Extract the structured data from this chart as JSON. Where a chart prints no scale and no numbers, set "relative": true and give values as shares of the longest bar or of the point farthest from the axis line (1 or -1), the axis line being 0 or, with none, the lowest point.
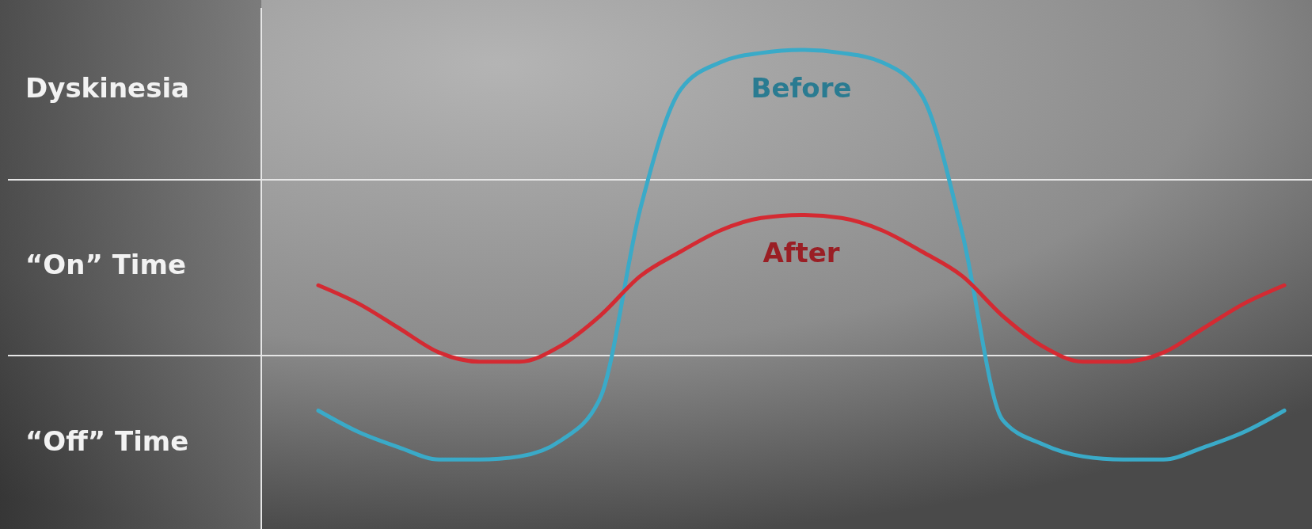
{
  "chart_data": {
    "type": "line",
    "relative": true,
    "categories": [
      null,
      null,
      null,
      null,
      null,
      null,
      null,
      null,
      null,
      null,
      null,
      null,
      null,
      null,
      null,
      null,
      null,
      null,
      null,
      null,
      null,
      null,
      null,
      null,
      null
    ],
    "annotations": [
      "Dyskinesia",
      "“On” Time",
      "“Off” Time"
    ],
    "ref_lines": [
      {
        "axis": "y",
        "value": 0.575,
        "color": "#e6e6e6"
      }
    ],
    "legend": false,
    "marker": "none",
    "line_style": "solid",
    "series": [
      {
        "name": "Before",
        "color": "#3aaac8",
        "values": [
          -0.18,
          -0.25,
          -0.3,
          -0.34,
          -0.34,
          -0.33,
          -0.28,
          -0.14,
          0.48,
          0.87,
          0.96,
          0.99,
          1,
          0.99,
          0.96,
          0.85,
          0.4,
          -0.21,
          -0.29,
          -0.33,
          -0.34,
          -0.34,
          -0.3,
          -0.25,
          -0.18
        ]
      },
      {
        "name": "After",
        "color": "#d42a32",
        "values": [
          0.23,
          0.17,
          0.09,
          0.01,
          -0.02,
          -0.02,
          0.03,
          0.13,
          0.26,
          0.34,
          0.41,
          0.45,
          0.46,
          0.45,
          0.41,
          0.34,
          0.26,
          0.13,
          0.03,
          -0.02,
          -0.02,
          0.01,
          0.09,
          0.17,
          0.23
        ]
      }
    ]
  }
}
